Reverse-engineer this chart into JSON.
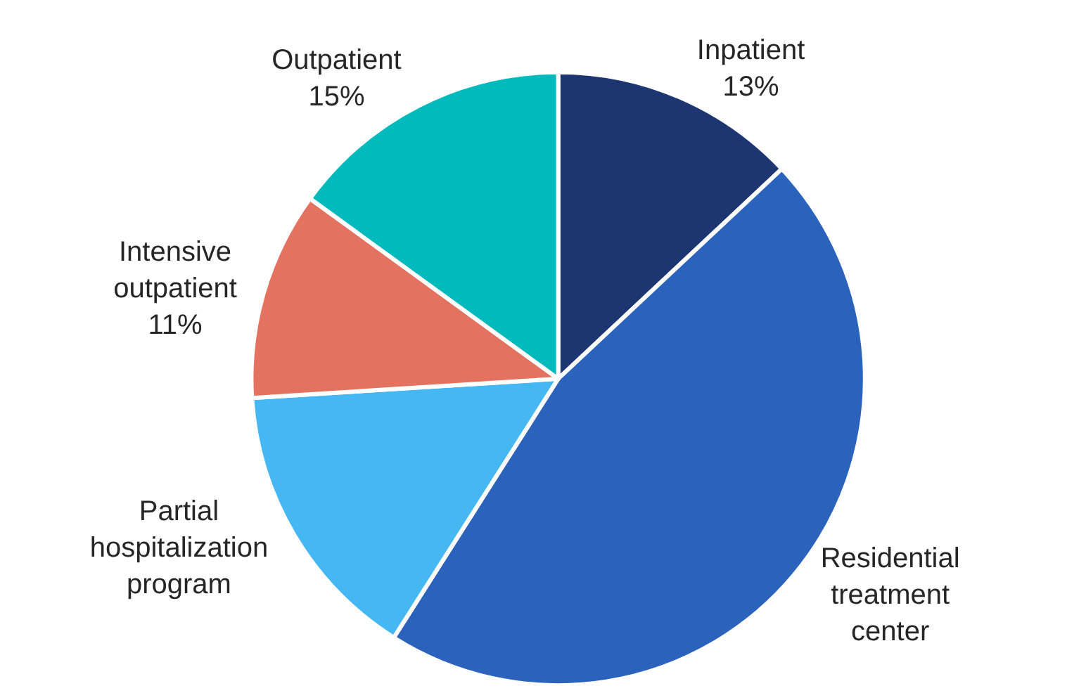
{
  "chart_data": {
    "type": "pie",
    "categories": [
      "Inpatient",
      "Residential treatment center",
      "Partial hospitalization program",
      "Intensive outpatient",
      "Outpatient"
    ],
    "values": [
      13,
      46,
      15,
      11,
      15
    ],
    "value_labels": [
      "13%",
      null,
      null,
      "11%",
      "15%"
    ],
    "colors": [
      "#1d3672",
      "#2a62bc",
      "#45b7f2",
      "#e37260",
      "#02b9bb"
    ]
  }
}
